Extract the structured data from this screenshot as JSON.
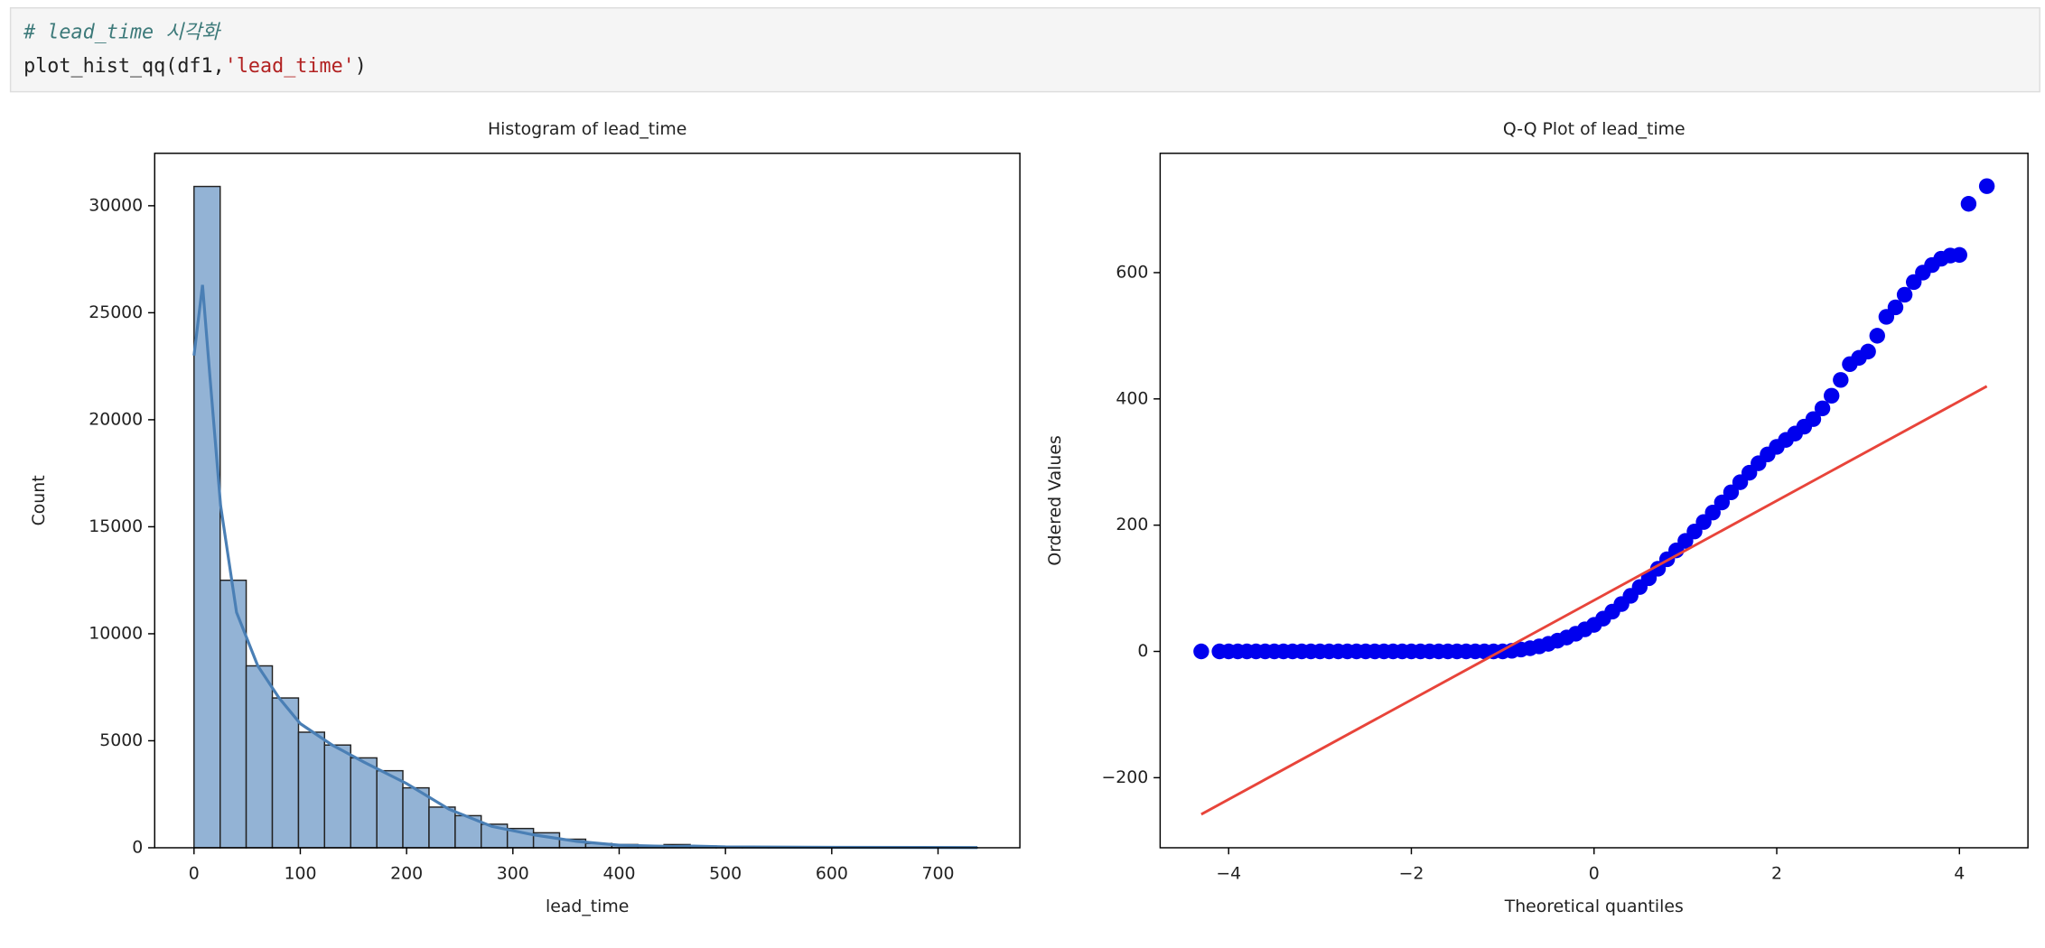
{
  "code": {
    "comment": "# lead_time 시각화",
    "call": "plot_hist_qq(df1,",
    "argument": "'lead_time'",
    "close": ")"
  },
  "chart_data": [
    {
      "type": "histogram",
      "title": "Histogram of lead_time",
      "xlabel": "lead_time",
      "ylabel": "Count",
      "bins": [
        0,
        24.6,
        49.1,
        73.7,
        98.3,
        122.8,
        147.4,
        172,
        196.5,
        221.1,
        245.7,
        270.2,
        294.8,
        319.4,
        343.9,
        368.5,
        393.1,
        417.6,
        442.2,
        466.8,
        491.3,
        515.9,
        540.5,
        565,
        589.6,
        614.2,
        638.7,
        663.3,
        687.9,
        712.4,
        737
      ],
      "values": [
        30900,
        12500,
        8500,
        7000,
        5400,
        4800,
        4200,
        3600,
        2800,
        1900,
        1500,
        1100,
        900,
        700,
        400,
        200,
        150,
        100,
        150,
        80,
        50,
        30,
        20,
        20,
        15,
        15,
        10,
        10,
        5,
        5
      ],
      "color": "#93b3d5",
      "kde": {
        "x": [
          0,
          8,
          15,
          25,
          40,
          60,
          80,
          100,
          130,
          160,
          200,
          240,
          280,
          320,
          360,
          400,
          450,
          470,
          500,
          600,
          737
        ],
        "y": [
          23000,
          26300,
          22000,
          16000,
          11000,
          8500,
          7000,
          5800,
          4800,
          4000,
          3000,
          1800,
          1000,
          600,
          300,
          120,
          60,
          80,
          40,
          20,
          10
        ],
        "color": "#4a7fb5"
      },
      "xlim": [
        -37,
        777
      ],
      "ylim": [
        0,
        32450
      ],
      "xticks": [
        0,
        100,
        200,
        300,
        400,
        500,
        600,
        700
      ],
      "yticks": [
        0,
        5000,
        10000,
        15000,
        20000,
        25000,
        30000
      ]
    },
    {
      "type": "scatter",
      "title": "Q-Q Plot of lead_time",
      "xlabel": "Theoretical quantiles",
      "ylabel": "Ordered Values",
      "x": [
        -4.3,
        -4.1,
        -4.0,
        -3.9,
        -3.8,
        -3.7,
        -3.6,
        -3.5,
        -3.4,
        -3.3,
        -3.2,
        -3.1,
        -3.0,
        -2.9,
        -2.8,
        -2.7,
        -2.6,
        -2.5,
        -2.4,
        -2.3,
        -2.2,
        -2.1,
        -2.0,
        -1.9,
        -1.8,
        -1.7,
        -1.6,
        -1.5,
        -1.4,
        -1.3,
        -1.2,
        -1.1,
        -1.0,
        -0.9,
        -0.8,
        -0.7,
        -0.6,
        -0.5,
        -0.4,
        -0.3,
        -0.2,
        -0.1,
        0,
        0.1,
        0.2,
        0.3,
        0.4,
        0.5,
        0.6,
        0.7,
        0.8,
        0.9,
        1.0,
        1.1,
        1.2,
        1.3,
        1.4,
        1.5,
        1.6,
        1.7,
        1.8,
        1.9,
        2.0,
        2.1,
        2.2,
        2.3,
        2.4,
        2.5,
        2.6,
        2.7,
        2.8,
        2.9,
        3.0,
        3.1,
        3.2,
        3.3,
        3.4,
        3.5,
        3.6,
        3.7,
        3.8,
        3.9,
        4.0,
        4.1,
        4.3
      ],
      "values": [
        0,
        0,
        0,
        0,
        0,
        0,
        0,
        0,
        0,
        0,
        0,
        0,
        0,
        0,
        0,
        0,
        0,
        0,
        0,
        0,
        0,
        0,
        0,
        0,
        0,
        0,
        0,
        0,
        0,
        0,
        0,
        0,
        0,
        1,
        3,
        5,
        8,
        12,
        17,
        22,
        28,
        35,
        42,
        52,
        63,
        75,
        88,
        102,
        116,
        131,
        146,
        160,
        175,
        190,
        205,
        220,
        236,
        252,
        268,
        283,
        298,
        312,
        324,
        335,
        345,
        356,
        368,
        385,
        405,
        430,
        455,
        465,
        475,
        500,
        530,
        545,
        565,
        585,
        600,
        612,
        622,
        627,
        628,
        709,
        737
      ],
      "color": "#0000ee",
      "line": {
        "x": [
          -4.3,
          4.3
        ],
        "y": [
          -258,
          420
        ],
        "color": "#e8443a"
      },
      "xlim": [
        -4.75,
        4.75
      ],
      "ylim": [
        -311,
        789
      ],
      "xticks": [
        {
          "value": -4,
          "label": "−4"
        },
        {
          "value": -2,
          "label": "−2"
        },
        0,
        2,
        4
      ],
      "yticks": [
        {
          "value": -200,
          "label": "−200"
        },
        0,
        200,
        400,
        600
      ]
    }
  ]
}
